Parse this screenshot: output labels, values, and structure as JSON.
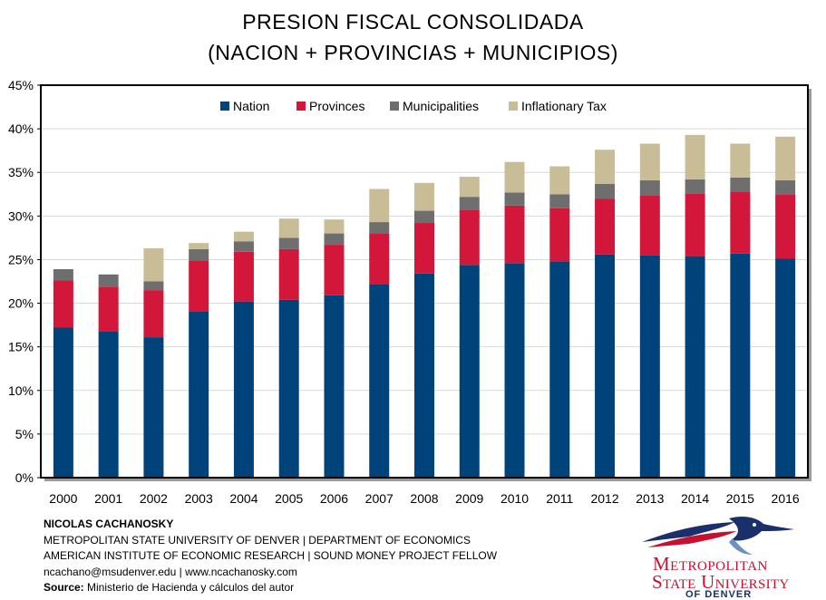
{
  "title_line1": "PRESION FISCAL CONSOLIDADA",
  "title_line2": "(NACION + PROVINCIAS + MUNICIPIOS)",
  "chart_data": {
    "type": "bar",
    "stacked": true,
    "categories": [
      "2000",
      "2001",
      "2002",
      "2003",
      "2004",
      "2005",
      "2006",
      "2007",
      "2008",
      "2009",
      "2010",
      "2011",
      "2012",
      "2013",
      "2014",
      "2015",
      "2016"
    ],
    "series": [
      {
        "name": "Nation",
        "color": "#00427a",
        "values": [
          17.2,
          16.8,
          16.1,
          19.1,
          20.2,
          20.4,
          20.9,
          22.2,
          23.4,
          24.4,
          24.6,
          24.8,
          25.6,
          25.5,
          25.4,
          25.7,
          25.1
        ]
      },
      {
        "name": "Provinces",
        "color": "#d3173b",
        "values": [
          5.4,
          5.1,
          5.4,
          5.8,
          5.7,
          5.8,
          5.8,
          5.8,
          5.8,
          6.3,
          6.6,
          6.1,
          6.4,
          6.9,
          7.2,
          7.1,
          7.4
        ]
      },
      {
        "name": "Municipalities",
        "color": "#6e6e6e",
        "values": [
          1.3,
          1.4,
          1.0,
          1.3,
          1.2,
          1.3,
          1.3,
          1.3,
          1.4,
          1.5,
          1.5,
          1.6,
          1.7,
          1.7,
          1.6,
          1.6,
          1.6
        ]
      },
      {
        "name": "Inflationary Tax",
        "color": "#c9bd97",
        "values": [
          0.0,
          0.0,
          3.8,
          0.7,
          1.1,
          2.2,
          1.6,
          3.8,
          3.2,
          2.3,
          3.5,
          3.2,
          3.9,
          4.2,
          5.1,
          3.9,
          5.0
        ]
      }
    ],
    "ylim": [
      0,
      45
    ],
    "yticks": [
      "0%",
      "5%",
      "10%",
      "15%",
      "20%",
      "25%",
      "30%",
      "35%",
      "40%",
      "45%"
    ],
    "grid": true,
    "legend_position": "top-center"
  },
  "footer": {
    "author": "NICOLAS CACHANOSKY",
    "line2": "METROPOLITAN STATE UNIVERSITY OF DENVER | DEPARTMENT OF ECONOMICS",
    "line3": "AMERICAN INSTITUTE OF ECONOMIC RESEARCH | SOUND MONEY PROJECT FELLOW",
    "line4": "ncachano@msudenver.edu  |  www.ncachanosky.com",
    "source_label": "Source:",
    "source_text": " Ministerio de Hacienda y cálculos del autor"
  },
  "logo": {
    "line1": "Metropolitan",
    "line2": "State University",
    "line3": "OF DENVER",
    "colors": {
      "red": "#c8102e",
      "navy": "#1b2f6b"
    }
  }
}
